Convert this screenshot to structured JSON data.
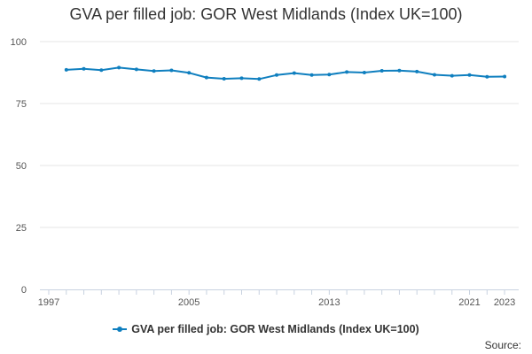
{
  "chart_data": {
    "type": "line",
    "title": "GVA per filled job: GOR West Midlands (Index UK=100)",
    "xlabel": "",
    "ylabel": "",
    "x": [
      "1998",
      "1999",
      "2000",
      "2001",
      "2002",
      "2003",
      "2004",
      "2005",
      "2006",
      "2007",
      "2008",
      "2009",
      "2010",
      "2011",
      "2012",
      "2013",
      "2014",
      "2015",
      "2016",
      "2017",
      "2018",
      "2019",
      "2020",
      "2021",
      "2022",
      "2023"
    ],
    "x_tick_labels": [
      "1997",
      "2005",
      "2013",
      "2021",
      "2023"
    ],
    "y_tick_labels": [
      "0",
      "25",
      "50",
      "75",
      "100"
    ],
    "ylim": [
      0,
      100
    ],
    "grid": true,
    "legend_position": "bottom",
    "series": [
      {
        "name": "GVA per filled job: GOR West Midlands (Index UK=100)",
        "color": "#0f7fbf",
        "values": [
          88.6,
          89.0,
          88.5,
          89.5,
          88.8,
          88.1,
          88.4,
          87.4,
          85.5,
          85.0,
          85.2,
          84.9,
          86.5,
          87.3,
          86.5,
          86.7,
          87.7,
          87.5,
          88.2,
          88.3,
          87.9,
          86.6,
          86.2,
          86.5,
          85.8,
          85.9
        ]
      }
    ]
  },
  "source_label": "Source:"
}
